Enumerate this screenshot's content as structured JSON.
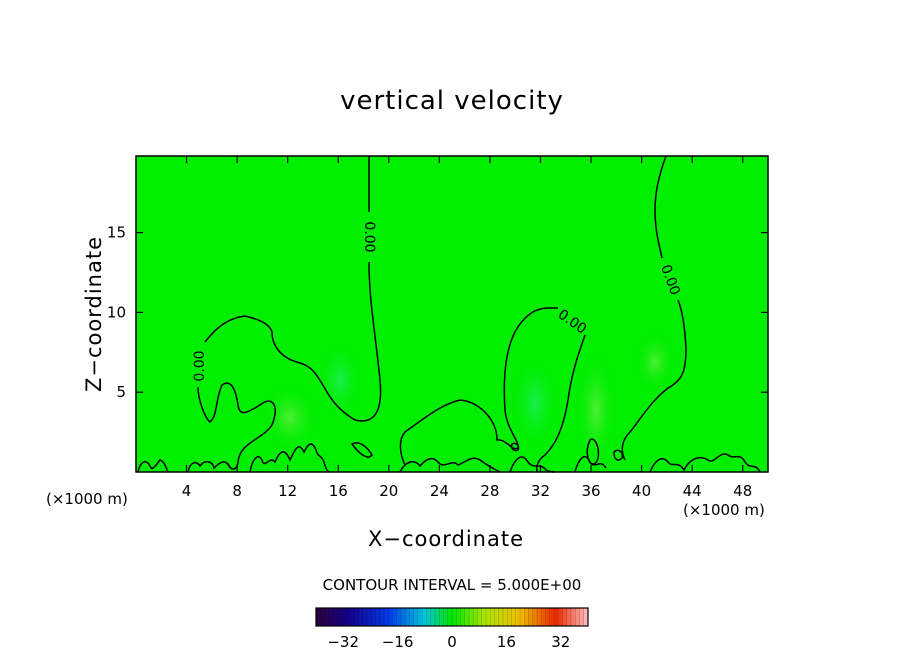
{
  "chart_data": {
    "type": "heatmap",
    "title": "vertical velocity",
    "xlabel": "X−coordinate",
    "ylabel": "Z−coordinate",
    "x_unit": "(×1000 m)",
    "xlim": [
      0,
      50
    ],
    "ylim": [
      0,
      19.8
    ],
    "x_ticks": [
      4,
      8,
      12,
      16,
      20,
      24,
      28,
      32,
      36,
      40,
      44,
      48
    ],
    "y_ticks": [
      5,
      10,
      15
    ],
    "contour_interval_label": "CONTOUR INTERVAL = 5.000E+00",
    "contour_label": "0.00",
    "field_range": [
      -40,
      40
    ],
    "dominant_value": 0,
    "colorbar_ticks": [
      "−32",
      "−16",
      "0",
      "16",
      "32"
    ],
    "colorbar_range": [
      -40,
      40
    ]
  }
}
